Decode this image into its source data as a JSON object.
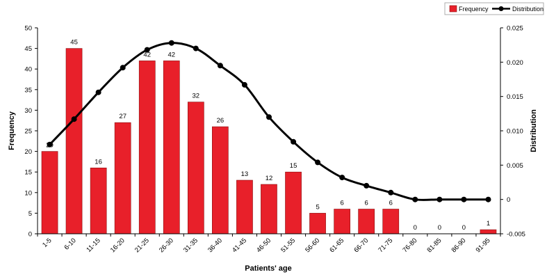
{
  "chart_data": {
    "type": "bar",
    "categories": [
      "1-5",
      "6-10",
      "11-15",
      "16-20",
      "21-25",
      "26-30",
      "31-35",
      "36-40",
      "41-45",
      "46-50",
      "51-55",
      "56-60",
      "61-65",
      "66-70",
      "71-75",
      "76-80",
      "81-85",
      "86-90",
      "91-95"
    ],
    "series": [
      {
        "name": "Frequency",
        "type": "bar",
        "axis": "left",
        "values": [
          20,
          45,
          16,
          27,
          42,
          42,
          32,
          26,
          13,
          12,
          15,
          5,
          6,
          6,
          6,
          0,
          0,
          0,
          1
        ]
      },
      {
        "name": "Distribution",
        "type": "line",
        "axis": "right",
        "values": [
          0.008,
          0.0117,
          0.0156,
          0.0192,
          0.0218,
          0.0228,
          0.022,
          0.0195,
          0.0167,
          0.012,
          0.0084,
          0.0054,
          0.0032,
          0.002,
          0.001,
          0.0,
          0.0,
          0.0,
          0.0
        ]
      }
    ],
    "xlabel": "Patients' age",
    "ylabel": "Frequency",
    "y2label": "Distribution",
    "ylim": [
      0,
      50
    ],
    "y2lim": [
      -0.005,
      0.025
    ],
    "yticks": [
      "0",
      "5",
      "10",
      "15",
      "20",
      "25",
      "30",
      "35",
      "40",
      "45",
      "50"
    ],
    "y2ticks": [
      "-0.005",
      "0",
      "0.005",
      "0.010",
      "0.015",
      "0.020",
      "0.025"
    ],
    "legend": {
      "position": "top-right",
      "entries": [
        "Frequency",
        "Distribution"
      ]
    },
    "grid": false,
    "colors": {
      "bar": "#e8202a",
      "bar_stroke": "#8a1010",
      "line": "#000000"
    }
  }
}
